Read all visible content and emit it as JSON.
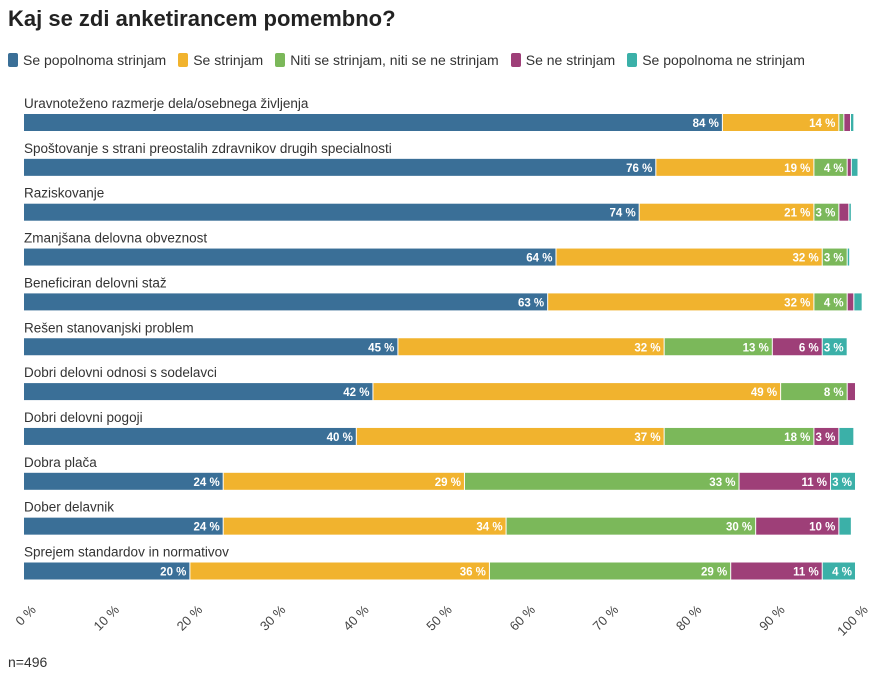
{
  "title": "Kaj se zdi anketirancem pomembno?",
  "footnote": "n=496",
  "chart_data": {
    "type": "bar",
    "orientation": "horizontal",
    "stacked": true,
    "title": "Kaj se zdi anketirancem pomembno?",
    "legend_position": "top",
    "series": [
      {
        "name": "Se popolnoma strinjam",
        "color": "#3a6f97"
      },
      {
        "name": "Se strinjam",
        "color": "#f1b32e"
      },
      {
        "name": "Niti se strinjam, niti se ne strinjam",
        "color": "#7bb85a"
      },
      {
        "name": "Se ne strinjam",
        "color": "#9e3f78"
      },
      {
        "name": "Se popolnoma ne strinjam",
        "color": "#3bb0a8"
      }
    ],
    "categories": [
      "Uravnoteženo razmerje dela/osebnega življenja",
      "Spoštovanje s strani preostalih zdravnikov drugih specialnosti",
      "Raziskovanje",
      "Zmanjšana delovna obveznost",
      "Beneficiran delovni staž",
      "Rešen stanovanjski problem",
      "Dobri delovni odnosi s sodelavci",
      "Dobri delovni pogoji",
      "Dobra plača",
      "Dober delavnik",
      "Sprejem standardov in normativov"
    ],
    "values": [
      [
        84,
        14,
        0.6,
        0.8,
        0.4
      ],
      [
        76,
        19,
        4,
        0.5,
        0.8
      ],
      [
        74,
        21,
        3,
        1.2,
        0.3
      ],
      [
        64,
        32,
        3,
        0,
        0.3
      ],
      [
        63,
        32,
        4,
        0.8,
        1
      ],
      [
        45,
        32,
        13,
        6,
        3
      ],
      [
        42,
        49,
        8,
        1,
        0
      ],
      [
        40,
        37,
        18,
        3,
        1.8
      ],
      [
        24,
        29,
        33,
        11,
        3
      ],
      [
        24,
        34,
        30,
        10,
        1.5
      ],
      [
        20,
        36,
        29,
        11,
        4
      ]
    ],
    "data_labels": [
      [
        "84 %",
        "14 %",
        "",
        "",
        ""
      ],
      [
        "76 %",
        "19 %",
        "4 %",
        "",
        ""
      ],
      [
        "74 %",
        "21 %",
        "3 %",
        "",
        ""
      ],
      [
        "64 %",
        "32 %",
        "3 %",
        "",
        ""
      ],
      [
        "63 %",
        "32 %",
        "4 %",
        "",
        ""
      ],
      [
        "45 %",
        "32 %",
        "13 %",
        "6 %",
        "3 %"
      ],
      [
        "42 %",
        "49 %",
        "8 %",
        "",
        ""
      ],
      [
        "40 %",
        "37 %",
        "18 %",
        "3 %",
        ""
      ],
      [
        "24 %",
        "29 %",
        "33 %",
        "11 %",
        "3 %"
      ],
      [
        "24 %",
        "34 %",
        "30 %",
        "10 %",
        ""
      ],
      [
        "20 %",
        "36 %",
        "29 %",
        "11 %",
        "4 %"
      ]
    ],
    "xlim": [
      0,
      100
    ],
    "x_ticks": [
      "0 %",
      "10 %",
      "20 %",
      "30 %",
      "40 %",
      "50 %",
      "60 %",
      "70 %",
      "80 %",
      "90 %",
      "100 %"
    ]
  }
}
